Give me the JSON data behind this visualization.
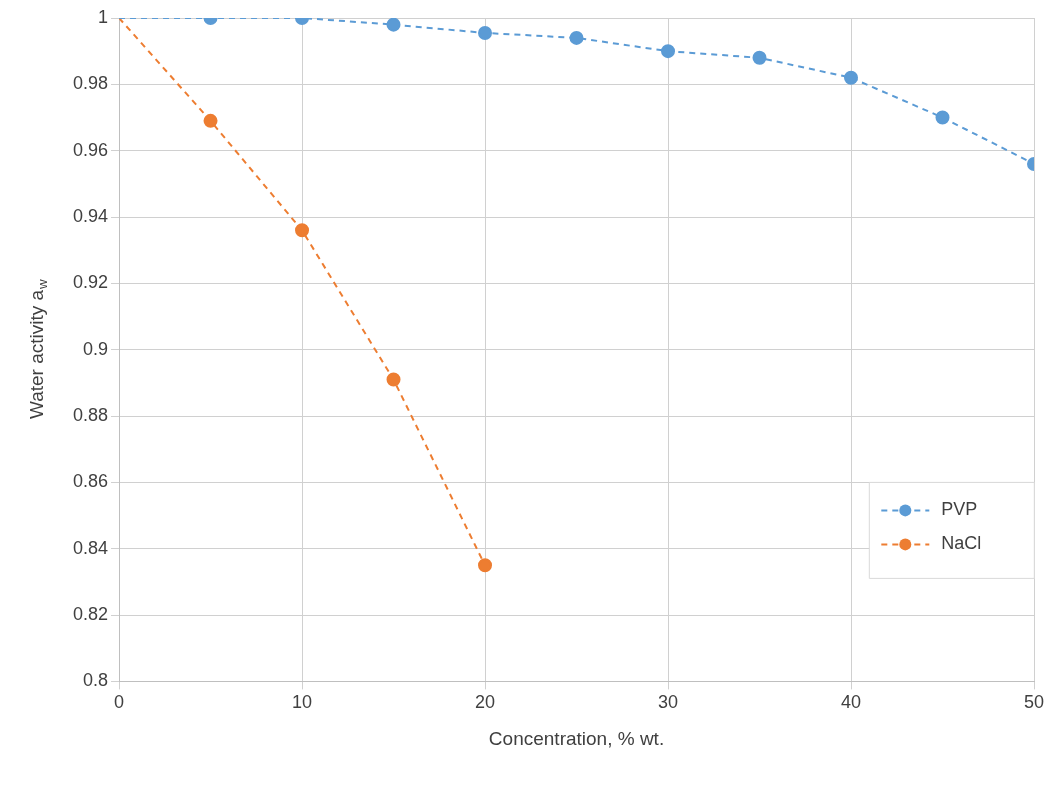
{
  "chart_data": {
    "type": "line",
    "xlabel": "Concentration, % wt.",
    "ylabel": "Water activity a$_{w}$",
    "xlim": [
      0,
      50
    ],
    "xticks": [
      0,
      10,
      20,
      30,
      40,
      50
    ],
    "ylim": [
      0.8,
      1
    ],
    "yticks": [
      0.8,
      0.82,
      0.84,
      0.86,
      0.88,
      0.9,
      0.92,
      0.94,
      0.96,
      0.98,
      1
    ],
    "grid": true,
    "legend": "right",
    "marker": "circle",
    "line_style": "dashed",
    "series": [
      {
        "name": "PVP",
        "color": "#5b9bd5",
        "x": [
          0,
          5,
          10,
          15,
          20,
          25,
          30,
          35,
          40,
          45,
          50
        ],
        "values": [
          1,
          1,
          1,
          0.998,
          0.9955,
          0.994,
          0.99,
          0.988,
          0.982,
          0.97,
          0.956
        ]
      },
      {
        "name": "NaCl",
        "color": "#ed7d31",
        "x": [
          0,
          5,
          10,
          15,
          20
        ],
        "values": [
          1,
          0.969,
          0.936,
          0.891,
          0.835
        ]
      }
    ]
  }
}
